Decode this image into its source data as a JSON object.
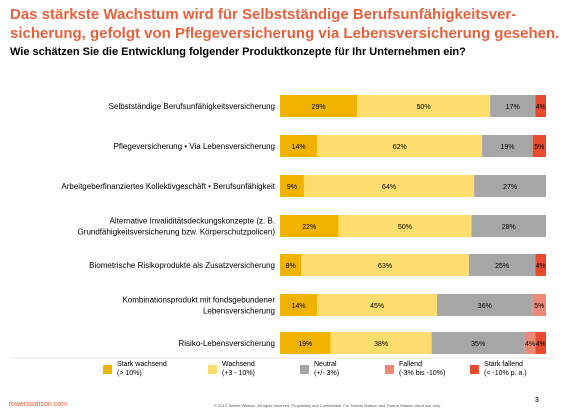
{
  "title_lines": [
    "Das stärkste Wachstum wird für Selbstständige Berufsunfähigkeitsver-",
    "sicherung, gefolgt von Pflegeversicherung via Lebensversicherung gesehen."
  ],
  "subtitle": "Wie schätzen Sie die Entwicklung folgender Produktkonzepte für Ihr Unternehmen ein?",
  "footer": {
    "brand": "towerswatson.com",
    "copyright": "© 2013 Towers Watson. All rights reserved. Proprietary and Confidential. For Towers Watson and Towers Watson client use only.",
    "page_number": "3"
  },
  "colors": {
    "stark_wachsend": "#f0b400",
    "wachsend": "#fcdd6e",
    "neutral": "#a6a6a6",
    "fallend": "#f08a78",
    "stark_fallend": "#e84a2e"
  },
  "chart_data": {
    "type": "bar",
    "orientation": "horizontal",
    "stacked": true,
    "xlim": [
      0,
      100
    ],
    "grid": false,
    "legend_position": "bottom",
    "categories": [
      [
        "Selbstständige Berufsunfähigkeitsversicherung"
      ],
      [
        "Pflegeversicherung • Via Lebensversicherung"
      ],
      [
        "Arbeitgeberfinanziertes Kollektivgeschäft • Berufsunfähigkeit"
      ],
      [
        "Alternative Invaliditätsdeckungskonzepte (z. B.",
        "Grundfähigkeitsversicherung bzw. Körperschutzpolicen)"
      ],
      [
        "Biometrische Risikoprodukte als Zusatzversicherung"
      ],
      [
        "Kombinationsprodukt mit fondsgebundener",
        "Lebensversicherung"
      ],
      [
        "Risiko-Lebensversicherung"
      ]
    ],
    "series": [
      {
        "key": "stark_wachsend",
        "legend": [
          "Stark wachsend",
          "(> 10%)"
        ],
        "values": [
          29,
          14,
          9,
          22,
          8,
          14,
          19
        ],
        "labels": [
          "29%",
          "14%",
          "9%",
          "22%",
          "8%",
          "14%",
          "19%"
        ]
      },
      {
        "key": "wachsend",
        "legend": [
          "Wachsend",
          "(+3 - 10%)"
        ],
        "values": [
          50,
          62,
          64,
          50,
          63,
          45,
          38
        ],
        "labels": [
          "50%",
          "62%",
          "64%",
          "50%",
          "63%",
          "45%",
          "38%"
        ]
      },
      {
        "key": "neutral",
        "legend": [
          "Neutral",
          "(+/- 3%)"
        ],
        "values": [
          17,
          19,
          27,
          28,
          25,
          36,
          35
        ],
        "labels": [
          "17%",
          "19%",
          "27%",
          "28%",
          "25%",
          "36%",
          "35%"
        ]
      },
      {
        "key": "fallend",
        "legend": [
          "Fallend",
          "(-3% bis -10%)"
        ],
        "values": [
          0,
          0,
          0,
          0,
          0,
          5,
          4
        ],
        "labels": [
          "",
          "",
          "",
          "",
          "",
          "5%",
          "4%"
        ]
      },
      {
        "key": "stark_fallend",
        "legend": [
          "Stark fallend",
          "(< -10% p. a.)"
        ],
        "values": [
          4,
          5,
          0,
          0,
          4,
          0,
          4
        ],
        "labels": [
          "4%",
          "5%",
          "",
          "",
          "4%",
          "",
          "4%"
        ]
      }
    ]
  }
}
